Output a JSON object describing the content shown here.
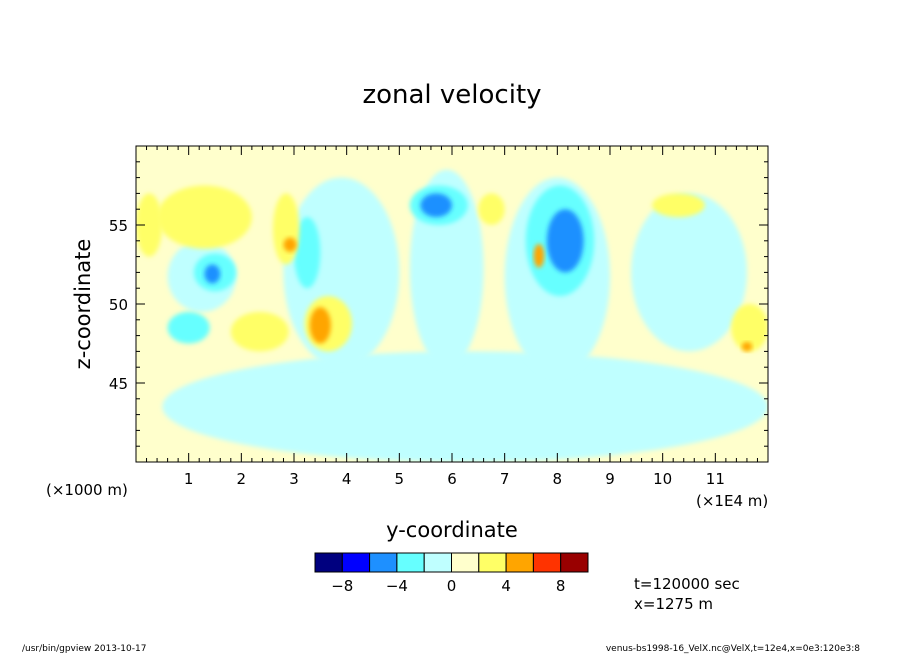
{
  "chart_data": {
    "type": "heatmap",
    "title": "zonal velocity",
    "xlabel": "y-coordinate",
    "ylabel": "z-coordinate",
    "x_units": "(×1000 m)",
    "x_scale_note": "(×1E4 m)",
    "xlim": [
      0,
      12
    ],
    "ylim": [
      40,
      60
    ],
    "x_ticks": [
      "1",
      "2",
      "3",
      "4",
      "5",
      "6",
      "7",
      "8",
      "9",
      "10",
      "11"
    ],
    "y_ticks": [
      "45",
      "50",
      "55"
    ],
    "colorbar": {
      "levels": [
        -10,
        -8,
        -6,
        -4,
        -2,
        0,
        2,
        4,
        6,
        8,
        10
      ],
      "tick_labels": [
        "−8",
        "−4",
        "0",
        "4",
        "8"
      ],
      "colors": [
        "#00007f",
        "#0000ff",
        "#1e90ff",
        "#66ffff",
        "#bfffff",
        "#ffffcc",
        "#ffff66",
        "#ffa500",
        "#ff3300",
        "#990000"
      ]
    },
    "background_color": "#ffffcc",
    "regions": [
      {
        "level": -2,
        "x": [
          0.5,
          12
        ],
        "y": [
          40,
          47
        ]
      },
      {
        "level": -2,
        "x": [
          0.6,
          1.9
        ],
        "y": [
          49.5,
          54
        ]
      },
      {
        "level": -2,
        "x": [
          2.8,
          5.0
        ],
        "y": [
          46,
          58
        ]
      },
      {
        "level": -2,
        "x": [
          5.2,
          6.6
        ],
        "y": [
          46,
          58.5
        ]
      },
      {
        "level": -2,
        "x": [
          7.0,
          9.0
        ],
        "y": [
          45.5,
          58
        ]
      },
      {
        "level": -2,
        "x": [
          9.4,
          11.6
        ],
        "y": [
          47,
          57
        ]
      },
      {
        "level": -4,
        "x": [
          1.1,
          1.9
        ],
        "y": [
          50.8,
          53.2
        ]
      },
      {
        "level": -4,
        "x": [
          3.0,
          3.5
        ],
        "y": [
          51,
          55.5
        ]
      },
      {
        "level": -4,
        "x": [
          5.2,
          6.3
        ],
        "y": [
          55,
          57.5
        ]
      },
      {
        "level": -4,
        "x": [
          7.4,
          8.7
        ],
        "y": [
          50.5,
          57.5
        ]
      },
      {
        "level": -4,
        "x": [
          0.6,
          1.4
        ],
        "y": [
          47.5,
          49.5
        ]
      },
      {
        "level": -6,
        "x": [
          1.3,
          1.6
        ],
        "y": [
          51.3,
          52.5
        ]
      },
      {
        "level": -6,
        "x": [
          5.4,
          6.0
        ],
        "y": [
          55.5,
          57
        ]
      },
      {
        "level": -6,
        "x": [
          7.8,
          8.5
        ],
        "y": [
          52,
          56
        ]
      },
      {
        "level": 2,
        "x": [
          0.4,
          2.2
        ],
        "y": [
          53.5,
          57.5
        ]
      },
      {
        "level": 2,
        "x": [
          1.8,
          2.9
        ],
        "y": [
          47,
          49.5
        ]
      },
      {
        "level": 2,
        "x": [
          3.2,
          4.1
        ],
        "y": [
          47,
          50.5
        ]
      },
      {
        "level": 2,
        "x": [
          2.6,
          3.1
        ],
        "y": [
          52.5,
          57
        ]
      },
      {
        "level": 2,
        "x": [
          6.5,
          7.0
        ],
        "y": [
          55,
          57
        ]
      },
      {
        "level": 2,
        "x": [
          9.8,
          10.8
        ],
        "y": [
          55.5,
          57
        ]
      },
      {
        "level": 2,
        "x": [
          11.3,
          12.0
        ],
        "y": [
          47,
          50
        ]
      },
      {
        "level": 2,
        "x": [
          0.0,
          0.5
        ],
        "y": [
          53,
          57
        ]
      },
      {
        "level": 4,
        "x": [
          3.3,
          3.7
        ],
        "y": [
          47.5,
          49.8
        ]
      },
      {
        "level": 4,
        "x": [
          2.8,
          3.05
        ],
        "y": [
          53.3,
          54.2
        ]
      },
      {
        "level": 4,
        "x": [
          7.55,
          7.75
        ],
        "y": [
          52.3,
          53.8
        ]
      },
      {
        "level": 4,
        "x": [
          11.5,
          11.7
        ],
        "y": [
          47.0,
          47.6
        ]
      }
    ]
  },
  "time_label": "t=120000 sec",
  "x_position_label": "x=1275 m",
  "footer_left": "/usr/bin/gpview   2013-10-17",
  "footer_right": "venus-bs1998-16_VelX.nc@VelX,t=12e4,x=0e3:120e3:8"
}
